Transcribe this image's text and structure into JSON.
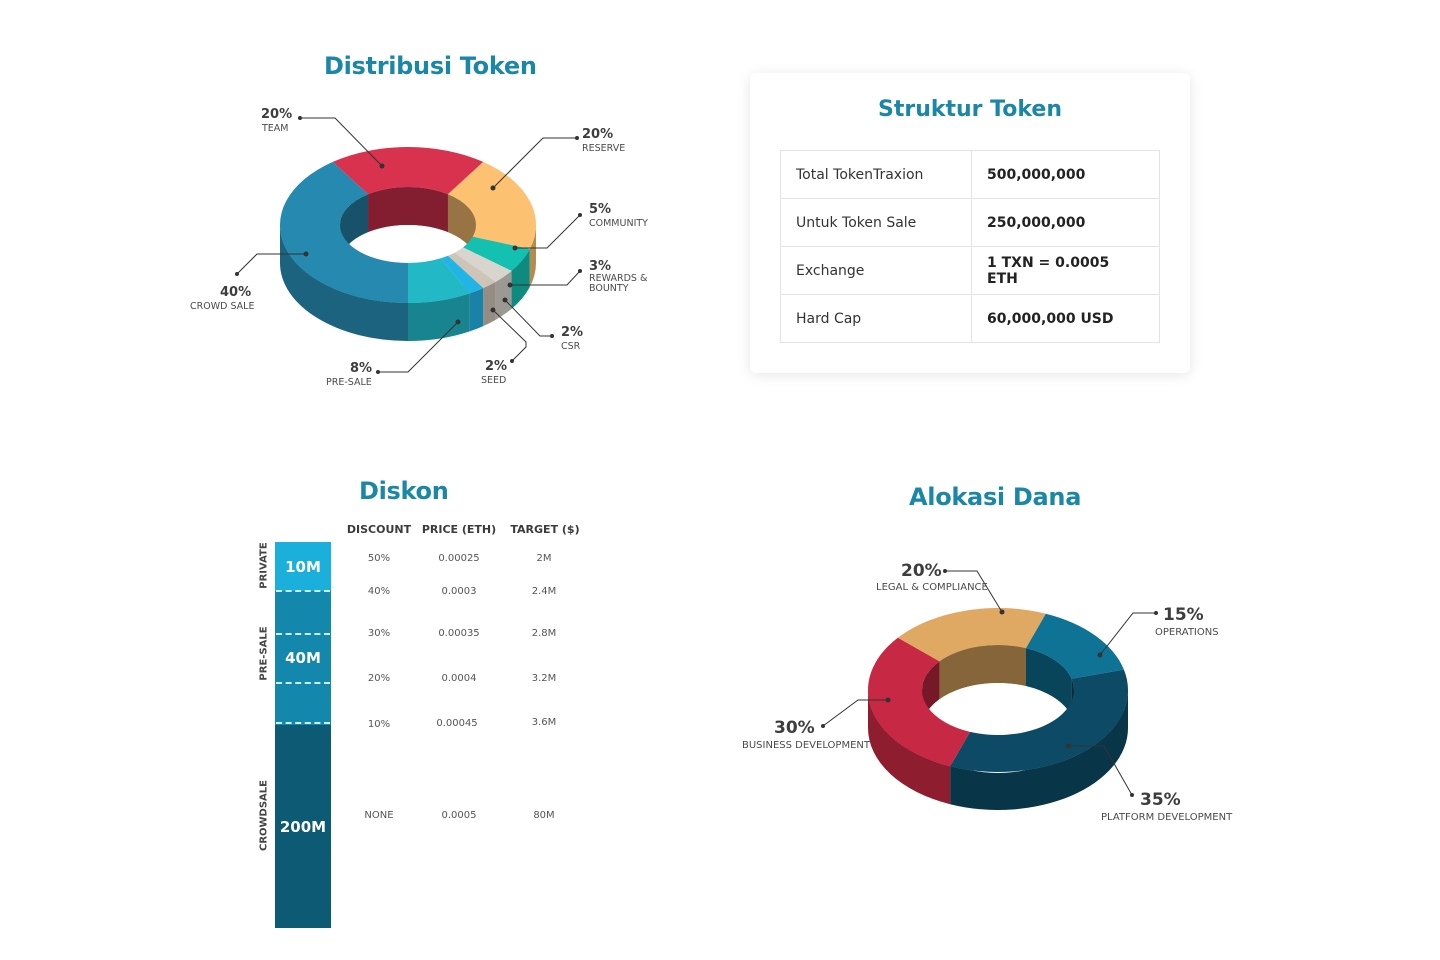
{
  "distribusi": {
    "title": "Distribusi Token",
    "slices": [
      {
        "pct": "20%",
        "label": "TEAM",
        "value": 20,
        "color": "#d8324f"
      },
      {
        "pct": "20%",
        "label": "RESERVE",
        "value": 20,
        "color": "#fdc172"
      },
      {
        "pct": "5%",
        "label": "COMMUNITY",
        "value": 5,
        "color": "#14c0b0"
      },
      {
        "pct": "3%",
        "label": "REWARDS &",
        "label2": "BOUNTY",
        "value": 3,
        "color": "#d8d4ce"
      },
      {
        "pct": "2%",
        "label": "CSR",
        "value": 2,
        "color": "#cfc4b8"
      },
      {
        "pct": "2%",
        "label": "SEED",
        "value": 2,
        "color": "#23b4e6"
      },
      {
        "pct": "8%",
        "label": "PRE-SALE",
        "value": 8,
        "color": "#22b8c6"
      },
      {
        "pct": "40%",
        "label": "CROWD SALE",
        "value": 40,
        "color": "#2689b0"
      }
    ]
  },
  "struktur": {
    "title": "Struktur Token",
    "rows": [
      {
        "key": "Total TokenTraxion",
        "value": "500,000,000"
      },
      {
        "key": "Untuk Token Sale",
        "value": "250,000,000"
      },
      {
        "key": "Exchange",
        "value": "1 TXN = 0.0005 ETH"
      },
      {
        "key": "Hard Cap",
        "value": "60,000,000 USD"
      }
    ]
  },
  "diskon": {
    "title": "Diskon",
    "headers": [
      "DISCOUNT",
      "PRICE (ETH)",
      "TARGET ($)"
    ],
    "stages": [
      {
        "label": "PRIVATE",
        "amount": "10M",
        "color": "#1bb0dc"
      },
      {
        "label": "PRE-SALE",
        "amount": "40M",
        "color": "#1487ad"
      },
      {
        "label": "CROWDSALE",
        "amount": "200M",
        "color": "#0d5a75"
      }
    ],
    "rows": [
      {
        "discount": "50%",
        "price": "0.00025",
        "target": "2M"
      },
      {
        "discount": "40%",
        "price": "0.0003",
        "target": "2.4M"
      },
      {
        "discount": "30%",
        "price": "0.00035",
        "target": "2.8M"
      },
      {
        "discount": "20%",
        "price": "0.0004",
        "target": "3.2M"
      },
      {
        "discount": "10%",
        "price": "0.00045",
        "target": "3.6M"
      },
      {
        "discount": "NONE",
        "price": "0.0005",
        "target": "80M"
      }
    ]
  },
  "alokasi": {
    "title": "Alokasi Dana",
    "slices": [
      {
        "pct": "20%",
        "label": "LEGAL & COMPLIANCE",
        "value": 20,
        "color": "#e0a963"
      },
      {
        "pct": "15%",
        "label": "OPERATIONS",
        "value": 15,
        "color": "#0f7396"
      },
      {
        "pct": "35%",
        "label": "PLATFORM DEVELOPMENT",
        "value": 35,
        "color": "#0d4a66"
      },
      {
        "pct": "30%",
        "label": "BUSINESS DEVELOPMENT",
        "value": 30,
        "color": "#c72843"
      }
    ]
  },
  "chart_data": [
    {
      "type": "pie",
      "title": "Distribusi Token",
      "categories": [
        "TEAM",
        "RESERVE",
        "COMMUNITY",
        "REWARDS & BOUNTY",
        "CSR",
        "SEED",
        "PRE-SALE",
        "CROWD SALE"
      ],
      "values": [
        20,
        20,
        5,
        3,
        2,
        2,
        8,
        40
      ]
    },
    {
      "type": "pie",
      "title": "Alokasi Dana",
      "categories": [
        "LEGAL & COMPLIANCE",
        "OPERATIONS",
        "PLATFORM DEVELOPMENT",
        "BUSINESS DEVELOPMENT"
      ],
      "values": [
        20,
        15,
        35,
        30
      ]
    }
  ]
}
